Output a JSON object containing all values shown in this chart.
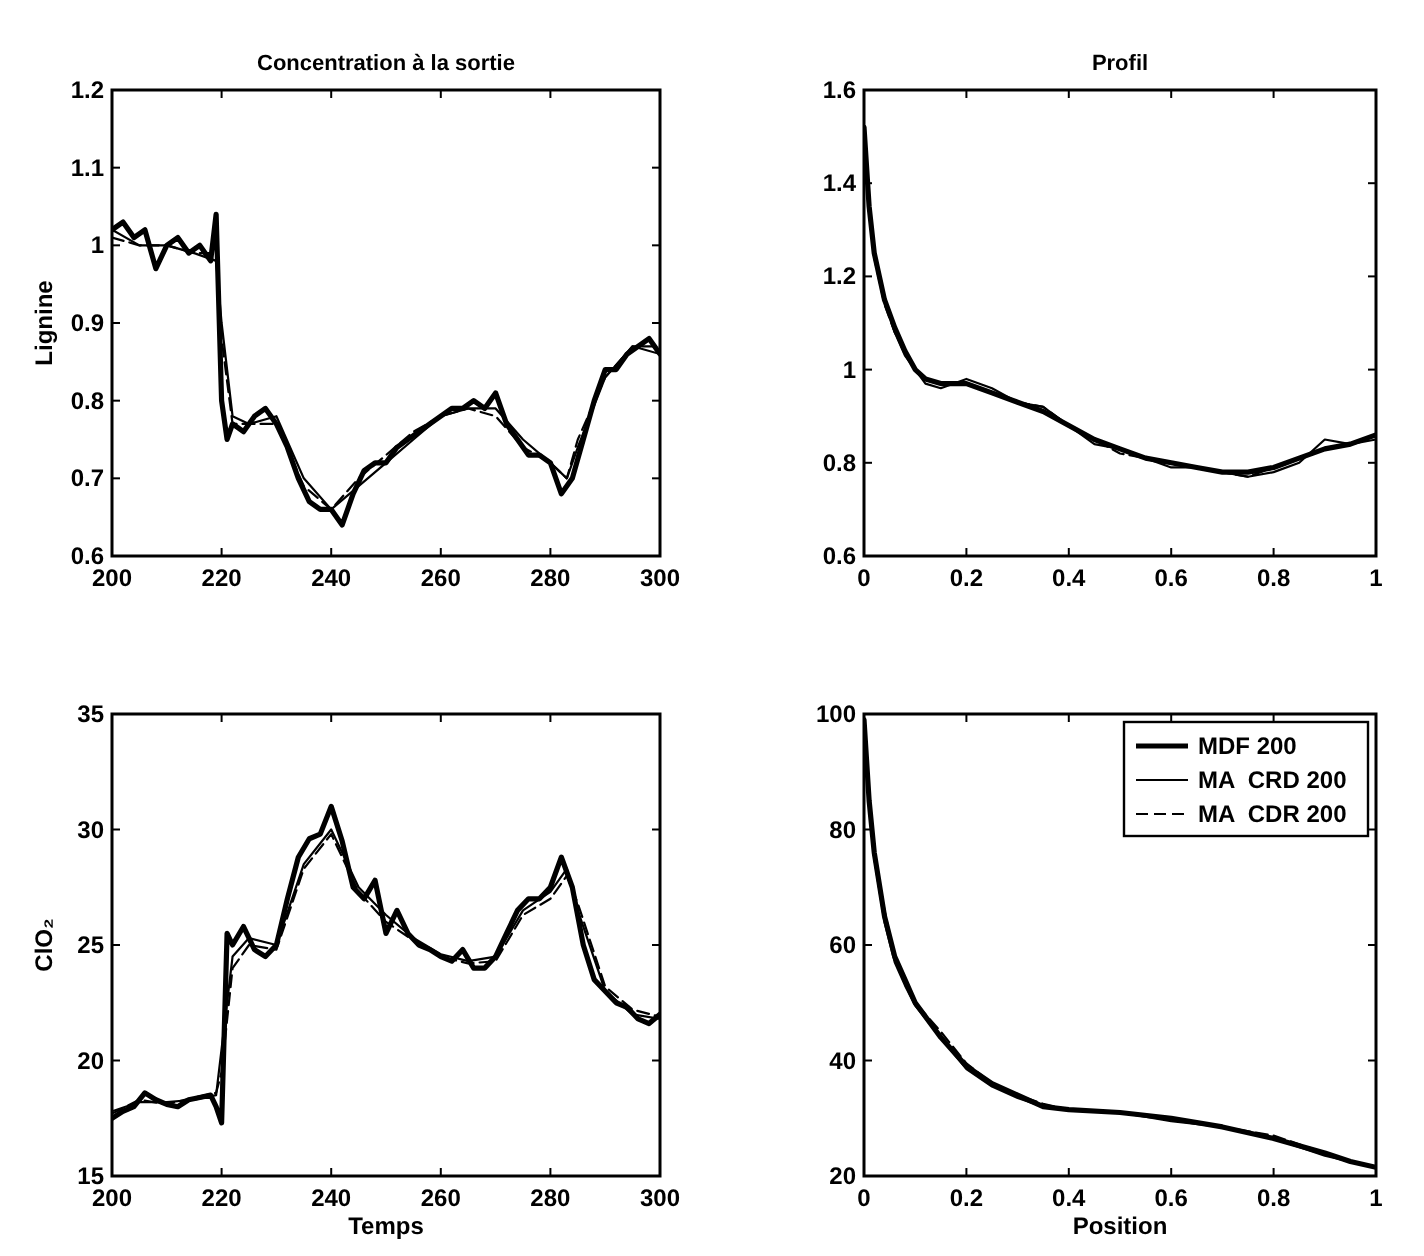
{
  "chart_data": [
    {
      "type": "line",
      "title": "Concentration à la sortie",
      "ylabel": "Lignine",
      "xlim": [
        200,
        300
      ],
      "xticks": [
        200,
        220,
        240,
        260,
        280,
        300
      ],
      "ylim": [
        0.6,
        1.2
      ],
      "yticks": [
        0.6,
        0.7,
        0.8,
        0.9,
        1,
        1.1,
        1.2
      ],
      "grid": false,
      "legend": false,
      "marker": "none",
      "series": [
        {
          "color": "#000000",
          "line_style": "solid",
          "x": [
            200,
            202,
            204,
            206,
            208,
            210,
            212,
            214,
            216,
            218,
            219,
            220,
            221,
            222,
            224,
            226,
            228,
            230,
            232,
            234,
            236,
            238,
            240,
            242,
            244,
            246,
            248,
            250,
            252,
            254,
            256,
            258,
            260,
            262,
            264,
            266,
            268,
            270,
            272,
            274,
            276,
            278,
            280,
            282,
            284,
            286,
            288,
            290,
            292,
            294,
            296,
            298,
            300
          ],
          "values": [
            1.02,
            1.03,
            1.01,
            1.02,
            0.97,
            1.0,
            1.01,
            0.99,
            1.0,
            0.98,
            1.04,
            0.8,
            0.75,
            0.77,
            0.76,
            0.78,
            0.79,
            0.77,
            0.74,
            0.7,
            0.67,
            0.66,
            0.66,
            0.64,
            0.68,
            0.71,
            0.72,
            0.72,
            0.74,
            0.75,
            0.76,
            0.77,
            0.78,
            0.79,
            0.79,
            0.8,
            0.79,
            0.81,
            0.77,
            0.75,
            0.73,
            0.73,
            0.72,
            0.68,
            0.7,
            0.75,
            0.8,
            0.84,
            0.84,
            0.86,
            0.87,
            0.88,
            0.86
          ]
        },
        {
          "color": "#000000",
          "line_style": "solid",
          "x": [
            200,
            205,
            210,
            215,
            219,
            220,
            222,
            225,
            230,
            235,
            240,
            245,
            250,
            255,
            260,
            265,
            270,
            275,
            280,
            283,
            285,
            290,
            295,
            300
          ],
          "values": [
            1.02,
            1.0,
            1.0,
            0.99,
            0.98,
            0.9,
            0.78,
            0.77,
            0.78,
            0.7,
            0.66,
            0.69,
            0.72,
            0.75,
            0.78,
            0.79,
            0.79,
            0.75,
            0.72,
            0.7,
            0.74,
            0.83,
            0.87,
            0.86
          ]
        },
        {
          "color": "#000000",
          "line_style": "dashed",
          "x": [
            200,
            205,
            210,
            215,
            219,
            220,
            222,
            225,
            230,
            235,
            240,
            245,
            250,
            255,
            260,
            265,
            270,
            275,
            280,
            283,
            285,
            290,
            295,
            300
          ],
          "values": [
            1.01,
            1.0,
            1.0,
            0.99,
            0.99,
            0.88,
            0.77,
            0.77,
            0.77,
            0.69,
            0.66,
            0.7,
            0.73,
            0.76,
            0.78,
            0.79,
            0.78,
            0.74,
            0.72,
            0.7,
            0.75,
            0.83,
            0.87,
            0.87
          ]
        }
      ]
    },
    {
      "type": "line",
      "title": "Profil",
      "xlim": [
        0,
        1
      ],
      "xticks": [
        0,
        0.2,
        0.4,
        0.6,
        0.8,
        1
      ],
      "ylim": [
        0.6,
        1.6
      ],
      "yticks": [
        0.6,
        0.8,
        1,
        1.2,
        1.4,
        1.6
      ],
      "grid": false,
      "legend": false,
      "marker": "none",
      "x": [
        0,
        0.01,
        0.02,
        0.04,
        0.06,
        0.08,
        0.1,
        0.12,
        0.15,
        0.2,
        0.25,
        0.3,
        0.35,
        0.4,
        0.45,
        0.5,
        0.55,
        0.6,
        0.65,
        0.7,
        0.75,
        0.8,
        0.85,
        0.9,
        0.95,
        1
      ],
      "series": [
        {
          "color": "#000000",
          "line_style": "solid",
          "values": [
            1.52,
            1.35,
            1.25,
            1.15,
            1.09,
            1.04,
            1.0,
            0.98,
            0.97,
            0.97,
            0.95,
            0.93,
            0.91,
            0.88,
            0.85,
            0.83,
            0.81,
            0.8,
            0.79,
            0.78,
            0.78,
            0.79,
            0.81,
            0.83,
            0.84,
            0.86
          ]
        },
        {
          "color": "#000000",
          "line_style": "solid",
          "values": [
            1.5,
            1.34,
            1.25,
            1.15,
            1.08,
            1.03,
            1.0,
            0.97,
            0.96,
            0.98,
            0.96,
            0.93,
            0.92,
            0.88,
            0.84,
            0.83,
            0.81,
            0.79,
            0.79,
            0.78,
            0.77,
            0.78,
            0.8,
            0.85,
            0.84,
            0.85
          ]
        },
        {
          "color": "#000000",
          "line_style": "dashed",
          "values": [
            1.48,
            1.35,
            1.24,
            1.14,
            1.08,
            1.04,
            1.0,
            0.98,
            0.97,
            0.97,
            0.95,
            0.93,
            0.92,
            0.88,
            0.85,
            0.82,
            0.81,
            0.8,
            0.79,
            0.78,
            0.77,
            0.79,
            0.81,
            0.83,
            0.84,
            0.86
          ]
        }
      ]
    },
    {
      "type": "line",
      "xlabel": "Temps",
      "ylabel": "ClO₂",
      "xlim": [
        200,
        300
      ],
      "xticks": [
        200,
        220,
        240,
        260,
        280,
        300
      ],
      "ylim": [
        15,
        35
      ],
      "yticks": [
        15,
        20,
        25,
        30,
        35
      ],
      "grid": false,
      "legend": false,
      "marker": "none",
      "series": [
        {
          "color": "#000000",
          "line_style": "solid",
          "x": [
            200,
            202,
            204,
            206,
            208,
            210,
            212,
            214,
            216,
            218,
            219,
            220,
            221,
            222,
            224,
            226,
            228,
            230,
            232,
            234,
            236,
            238,
            240,
            242,
            244,
            246,
            248,
            250,
            252,
            254,
            256,
            258,
            260,
            262,
            264,
            266,
            268,
            270,
            272,
            274,
            276,
            278,
            280,
            282,
            284,
            286,
            288,
            290,
            292,
            294,
            296,
            298,
            300
          ],
          "values": [
            17.5,
            17.8,
            18.0,
            18.6,
            18.3,
            18.1,
            18.0,
            18.3,
            18.4,
            18.5,
            18.0,
            17.3,
            25.5,
            25.0,
            25.8,
            24.8,
            24.5,
            25.0,
            27.0,
            28.8,
            29.6,
            29.8,
            31.0,
            29.5,
            27.5,
            27.0,
            27.8,
            25.5,
            26.5,
            25.5,
            25.0,
            24.8,
            24.5,
            24.3,
            24.8,
            24.0,
            24.0,
            24.5,
            25.5,
            26.5,
            27.0,
            27.0,
            27.5,
            28.8,
            27.5,
            25.0,
            23.5,
            23.0,
            22.5,
            22.3,
            21.8,
            21.6,
            22.0
          ]
        },
        {
          "color": "#000000",
          "line_style": "solid",
          "x": [
            200,
            205,
            210,
            215,
            219,
            220,
            222,
            225,
            230,
            235,
            240,
            245,
            250,
            255,
            260,
            265,
            270,
            275,
            280,
            283,
            285,
            290,
            295,
            300
          ],
          "values": [
            17.8,
            18.2,
            18.2,
            18.3,
            18.5,
            20.5,
            24.5,
            25.3,
            25.0,
            28.5,
            30.0,
            27.5,
            26.3,
            25.3,
            24.6,
            24.3,
            24.5,
            26.5,
            27.3,
            28.3,
            26.5,
            23.0,
            22.0,
            21.8
          ]
        },
        {
          "color": "#000000",
          "line_style": "dashed",
          "x": [
            200,
            205,
            210,
            215,
            219,
            220,
            222,
            225,
            230,
            235,
            240,
            245,
            250,
            255,
            260,
            265,
            270,
            275,
            280,
            283,
            285,
            290,
            295,
            300
          ],
          "values": [
            17.7,
            18.3,
            18.1,
            18.4,
            18.6,
            19.5,
            24.0,
            25.0,
            24.8,
            28.3,
            29.8,
            27.3,
            26.0,
            25.2,
            24.5,
            24.2,
            24.3,
            26.3,
            27.0,
            28.0,
            26.8,
            23.2,
            22.2,
            21.9
          ]
        }
      ]
    },
    {
      "type": "line",
      "xlabel": "Position",
      "xlim": [
        0,
        1
      ],
      "xticks": [
        0,
        0.2,
        0.4,
        0.6,
        0.8,
        1
      ],
      "ylim": [
        20,
        100
      ],
      "yticks": [
        20,
        40,
        60,
        80,
        100
      ],
      "grid": false,
      "legend": "top right",
      "marker": "none",
      "x": [
        0,
        0.005,
        0.01,
        0.02,
        0.04,
        0.06,
        0.08,
        0.1,
        0.15,
        0.2,
        0.25,
        0.3,
        0.35,
        0.4,
        0.5,
        0.6,
        0.7,
        0.8,
        0.9,
        0.95,
        1
      ],
      "series": [
        {
          "name": "MDF 200",
          "color": "#000000",
          "line_style": "solid",
          "values": [
            99,
            92,
            85,
            76,
            65,
            58,
            54,
            50,
            44,
            39,
            36,
            34,
            32,
            31.5,
            31,
            30,
            28.5,
            26.5,
            24,
            22.5,
            21.5
          ]
        },
        {
          "name": "MA  CRD 200",
          "color": "#000000",
          "line_style": "solid",
          "values": [
            97,
            91,
            84,
            75,
            64,
            57,
            53,
            49.5,
            44,
            38.5,
            35.5,
            33.5,
            32,
            31.5,
            31,
            29.5,
            28.5,
            26.5,
            23.5,
            22.5,
            21.5
          ]
        },
        {
          "name": "MA  CDR 200",
          "color": "#000000",
          "line_style": "dashed",
          "values": [
            98,
            91,
            85,
            76,
            66,
            58,
            54,
            50,
            45,
            39.5,
            36,
            34,
            32.5,
            31.5,
            31,
            30,
            28.5,
            27,
            24,
            22.5,
            21.5
          ]
        }
      ]
    }
  ]
}
